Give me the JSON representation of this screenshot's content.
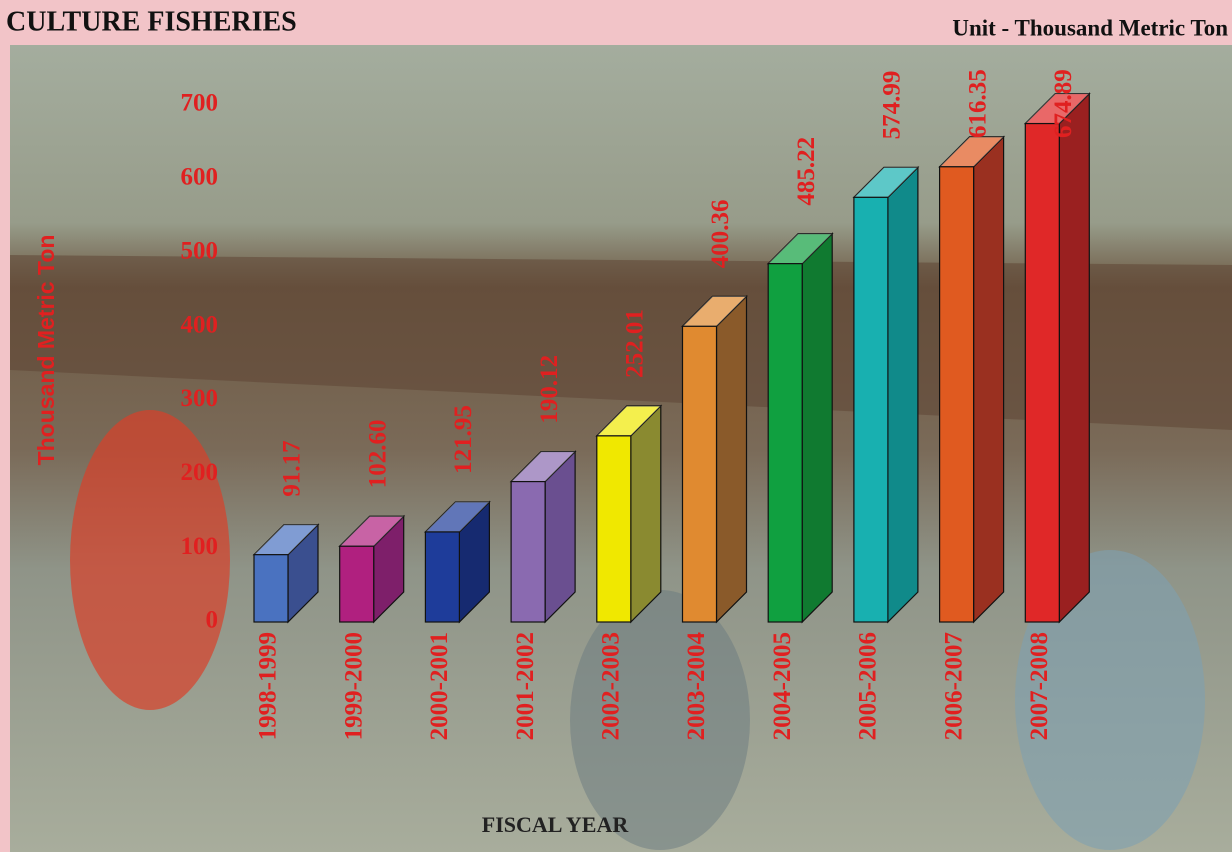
{
  "chart_data": {
    "type": "bar3d",
    "title": "CULTURE FISHERIES",
    "subtitle": "Unit - Thousand  Metric Ton",
    "y_label": "Thousand Metric Ton",
    "x_label": "FISCAL YEAR",
    "categories": [
      "1998-1999",
      "1999-2000",
      "2000-2001",
      "2001-2002",
      "2002-2003",
      "2003-2004",
      "2004-2005",
      "2005-2006",
      "2006-2007",
      "2007-2008"
    ],
    "values": [
      91.17,
      102.6,
      121.95,
      190.12,
      252.01,
      400.36,
      485.22,
      574.99,
      616.35,
      674.89
    ],
    "value_labels": [
      "91.17",
      "102.60",
      "121.95",
      "190.12",
      "252.01",
      "400.36",
      "485.22",
      "574.99",
      "616.35",
      "674.89"
    ],
    "colors": [
      "#4a72c0",
      "#b0207f",
      "#1e3c9a",
      "#8a6ab0",
      "#f0e800",
      "#e08a30",
      "#10a040",
      "#18b0b0",
      "#e05a20",
      "#e02828"
    ],
    "side_colors": [
      "#3a4f8f",
      "#7e1f6a",
      "#162a70",
      "#6a4f90",
      "#8a8a30",
      "#8a5a2a",
      "#107a30",
      "#108a8a",
      "#9a3020",
      "#9a2020"
    ],
    "ylim": [
      0,
      700
    ],
    "yticks": [
      0,
      100,
      200,
      300,
      400,
      500,
      600,
      700
    ]
  }
}
